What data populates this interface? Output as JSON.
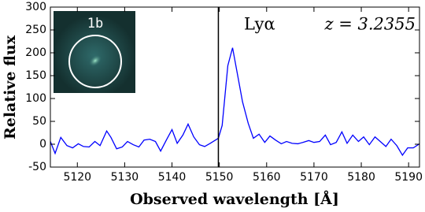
{
  "chart_data": {
    "type": "line",
    "xlabel": "Observed wavelength [Å]",
    "ylabel": "Relative flux",
    "annotations": [
      "Lyα",
      "z = 3.2355",
      "1b"
    ],
    "vline": 5149.8,
    "x": [
      5114.3,
      5115.3,
      5116.5,
      5117.8,
      5119.0,
      5120.2,
      5121.3,
      5122.5,
      5123.7,
      5124.8,
      5126.2,
      5127.1,
      5128.3,
      5129.5,
      5130.6,
      5131.8,
      5133.0,
      5134.1,
      5135.3,
      5136.5,
      5137.6,
      5138.8,
      5140.0,
      5141.1,
      5142.3,
      5143.4,
      5144.6,
      5145.8,
      5146.9,
      5148.1,
      5149.8,
      5150.6,
      5151.8,
      5152.8,
      5153.8,
      5154.9,
      5156.1,
      5157.2,
      5158.4,
      5159.6,
      5160.7,
      5161.9,
      5163.1,
      5164.2,
      5165.4,
      5166.6,
      5167.7,
      5168.9,
      5170.0,
      5171.2,
      5172.4,
      5173.5,
      5174.7,
      5175.9,
      5177.0,
      5178.2,
      5179.4,
      5180.5,
      5181.7,
      5182.9,
      5184.0,
      5185.2,
      5186.3,
      5187.5,
      5188.7,
      5189.8,
      5191.0,
      5192.3
    ],
    "series": [
      {
        "color": "#0000ff",
        "values": [
          6,
          -20,
          15,
          -3,
          -8,
          1,
          -5,
          -6,
          6,
          -3,
          29,
          15,
          -10,
          -6,
          6,
          -1,
          -6,
          9,
          11,
          6,
          -15,
          9,
          32,
          2,
          20,
          44,
          16,
          -1,
          -5,
          2,
          13,
          41,
          172,
          211,
          155,
          93,
          46,
          13,
          22,
          4,
          18,
          9,
          1,
          6,
          2,
          1,
          4,
          8,
          4,
          6,
          20,
          -1,
          4,
          27,
          2,
          20,
          6,
          16,
          -1,
          16,
          6,
          -5,
          11,
          -3,
          -24,
          -8,
          -8,
          1
        ]
      }
    ],
    "xlim": [
      5114.3,
      5192.3
    ],
    "ylim": [
      -50,
      300
    ],
    "xticks": [
      5120,
      5130,
      5140,
      5150,
      5160,
      5170,
      5180,
      5190
    ],
    "yticks": [
      -50,
      0,
      50,
      100,
      150,
      200,
      250,
      300
    ]
  }
}
